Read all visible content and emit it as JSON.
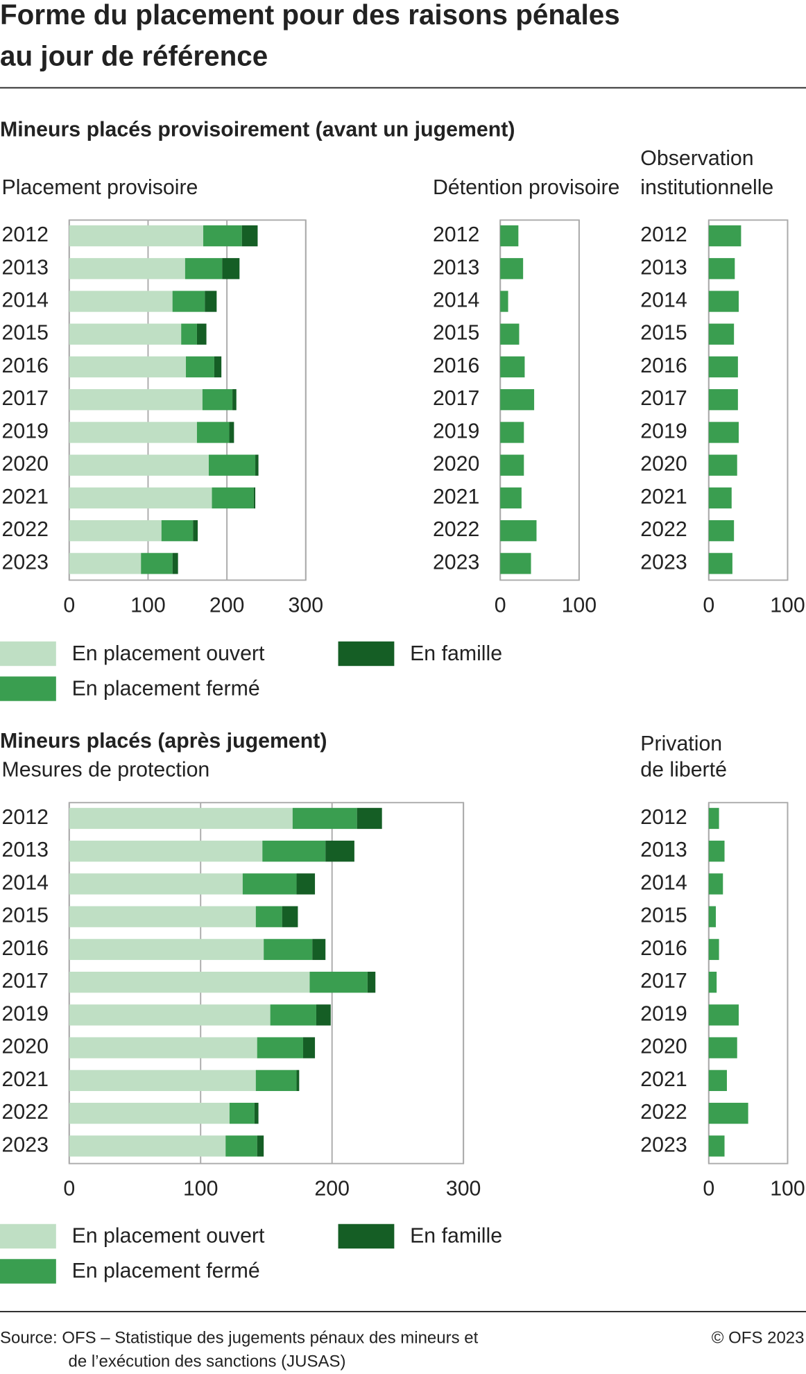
{
  "title": [
    "Forme du placement pour des raisons pénales",
    "au jour de référence"
  ],
  "sections": [
    {
      "heading": "Mineurs placés provisoirement (avant un jugement)"
    },
    {
      "heading": "Mineurs placés (après jugement)"
    }
  ],
  "source": [
    "Source: OFS – Statistique des jugements pénaux des mineurs et",
    "de l’exécution des sanctions (JUSAS)"
  ],
  "copyright": "© OFS 2023",
  "chart_data": [
    {
      "type": "bar",
      "orientation": "horizontal",
      "stacked": true,
      "title": [
        "Placement provisoire"
      ],
      "legend": true,
      "categories": [
        "2012",
        "2013",
        "2014",
        "2015",
        "2016",
        "2017",
        "2019",
        "2020",
        "2021",
        "2022",
        "2023"
      ],
      "series": [
        {
          "name": "En placement ouvert",
          "color": "#bfdfc4",
          "values": [
            170,
            147,
            131,
            142,
            148,
            169,
            162,
            177,
            181,
            117,
            91
          ]
        },
        {
          "name": "En placement fermé",
          "color": "#3a9e50",
          "values": [
            49,
            47,
            41,
            20,
            36,
            38,
            41,
            59,
            53,
            40,
            40
          ]
        },
        {
          "name": "En famille",
          "color": "#155e25",
          "values": [
            20,
            22,
            15,
            12,
            9,
            5,
            6,
            4,
            2,
            6,
            7
          ]
        }
      ],
      "xlim": [
        0,
        300
      ],
      "xticks": [
        0,
        100,
        200,
        300
      ],
      "grid": true
    },
    {
      "type": "bar",
      "orientation": "horizontal",
      "title": [
        "Détention provisoire"
      ],
      "color": "#3a9e50",
      "categories": [
        "2012",
        "2013",
        "2014",
        "2015",
        "2016",
        "2017",
        "2019",
        "2020",
        "2021",
        "2022",
        "2023"
      ],
      "values": [
        23,
        29,
        10,
        24,
        31,
        43,
        30,
        30,
        27,
        46,
        39
      ],
      "xlim": [
        0,
        100
      ],
      "xticks": [
        0,
        100
      ],
      "grid": true
    },
    {
      "type": "bar",
      "orientation": "horizontal",
      "title": [
        "Observation",
        "institutionnelle"
      ],
      "color": "#3a9e50",
      "categories": [
        "2012",
        "2013",
        "2014",
        "2015",
        "2016",
        "2017",
        "2019",
        "2020",
        "2021",
        "2022",
        "2023"
      ],
      "values": [
        41,
        33,
        38,
        32,
        37,
        37,
        38,
        36,
        29,
        32,
        30
      ],
      "xlim": [
        0,
        100
      ],
      "xticks": [
        0,
        100
      ],
      "grid": true
    },
    {
      "type": "bar",
      "orientation": "horizontal",
      "stacked": true,
      "title": [
        "Mesures de protection"
      ],
      "legend": true,
      "categories": [
        "2012",
        "2013",
        "2014",
        "2015",
        "2016",
        "2017",
        "2019",
        "2020",
        "2021",
        "2022",
        "2023"
      ],
      "series": [
        {
          "name": "En placement ouvert",
          "color": "#bfdfc4",
          "values": [
            170,
            147,
            132,
            142,
            148,
            183,
            153,
            143,
            142,
            122,
            119
          ]
        },
        {
          "name": "En placement fermé",
          "color": "#3a9e50",
          "values": [
            49,
            48,
            41,
            20,
            37,
            44,
            35,
            35,
            31,
            19,
            24
          ]
        },
        {
          "name": "En famille",
          "color": "#155e25",
          "values": [
            19,
            22,
            14,
            12,
            10,
            6,
            11,
            9,
            2,
            3,
            5
          ]
        }
      ],
      "xlim": [
        0,
        300
      ],
      "xticks": [
        0,
        100,
        200,
        300
      ],
      "grid": true
    },
    {
      "type": "bar",
      "orientation": "horizontal",
      "title": [
        "Privation",
        "de liberté"
      ],
      "color": "#3a9e50",
      "categories": [
        "2012",
        "2013",
        "2014",
        "2015",
        "2016",
        "2017",
        "2019",
        "2020",
        "2021",
        "2022",
        "2023"
      ],
      "values": [
        13,
        20,
        18,
        9,
        13,
        10,
        38,
        36,
        23,
        50,
        20
      ],
      "xlim": [
        0,
        100
      ],
      "xticks": [
        0,
        100
      ],
      "grid": true
    }
  ]
}
